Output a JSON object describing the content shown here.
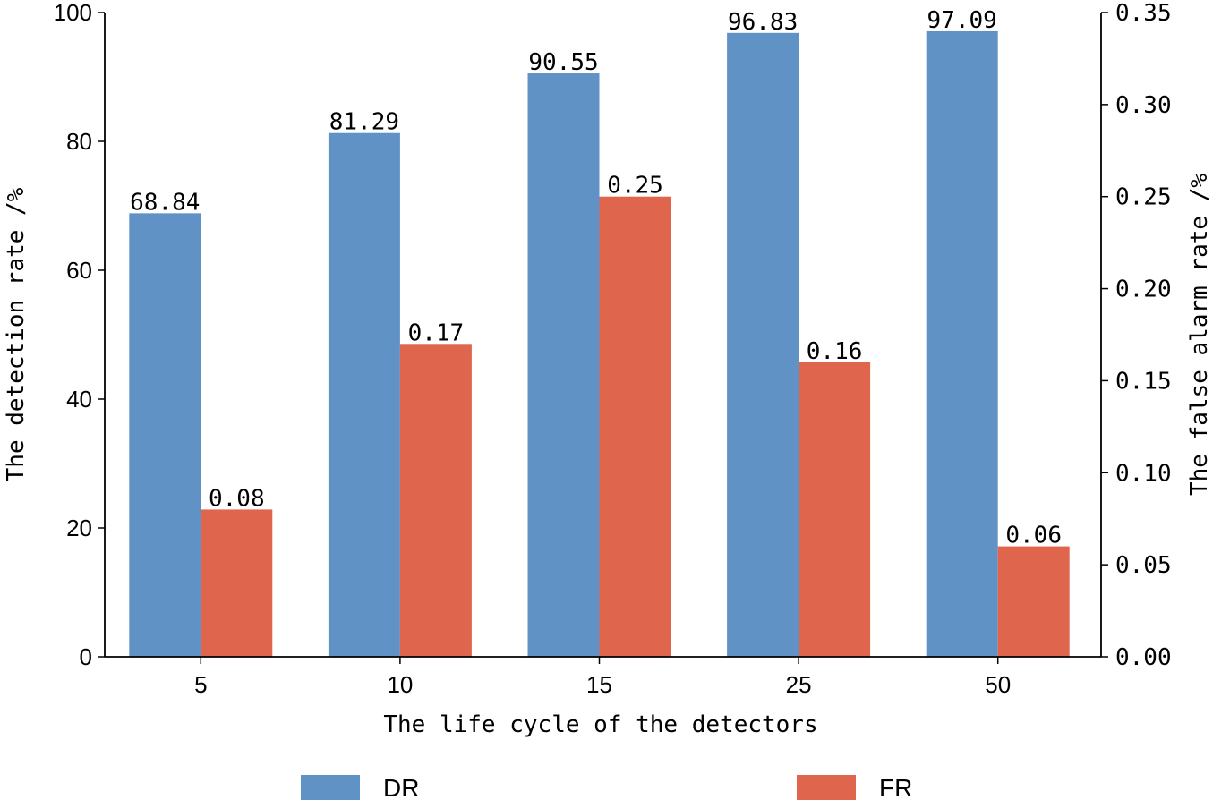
{
  "chart_data": {
    "type": "bar",
    "categories": [
      "5",
      "10",
      "15",
      "25",
      "50"
    ],
    "xlabel": "The life cycle of the detectors",
    "ylabel_left": "The detection rate /%",
    "ylabel_right": "The false alarm rate /%",
    "ylim_left": [
      0,
      100
    ],
    "ylim_right": [
      0,
      0.35
    ],
    "yticks_left": [
      "0",
      "20",
      "40",
      "60",
      "80",
      "100"
    ],
    "yticks_right": [
      "0.00",
      "0.05",
      "0.10",
      "0.15",
      "0.20",
      "0.25",
      "0.30",
      "0.35"
    ],
    "grid": false,
    "legend_position": "bottom",
    "series": [
      {
        "name": "DR",
        "axis": "left",
        "color": "#6092c6",
        "values": [
          68.84,
          81.29,
          90.55,
          96.83,
          97.09
        ],
        "labels": [
          "68.84",
          "81.29",
          "90.55",
          "96.83",
          "97.09"
        ]
      },
      {
        "name": "FR",
        "axis": "right",
        "color": "#e0654d",
        "values": [
          0.08,
          0.17,
          0.25,
          0.16,
          0.06
        ],
        "labels": [
          "0.08",
          "0.17",
          "0.25",
          "0.16",
          "0.06"
        ]
      }
    ]
  }
}
